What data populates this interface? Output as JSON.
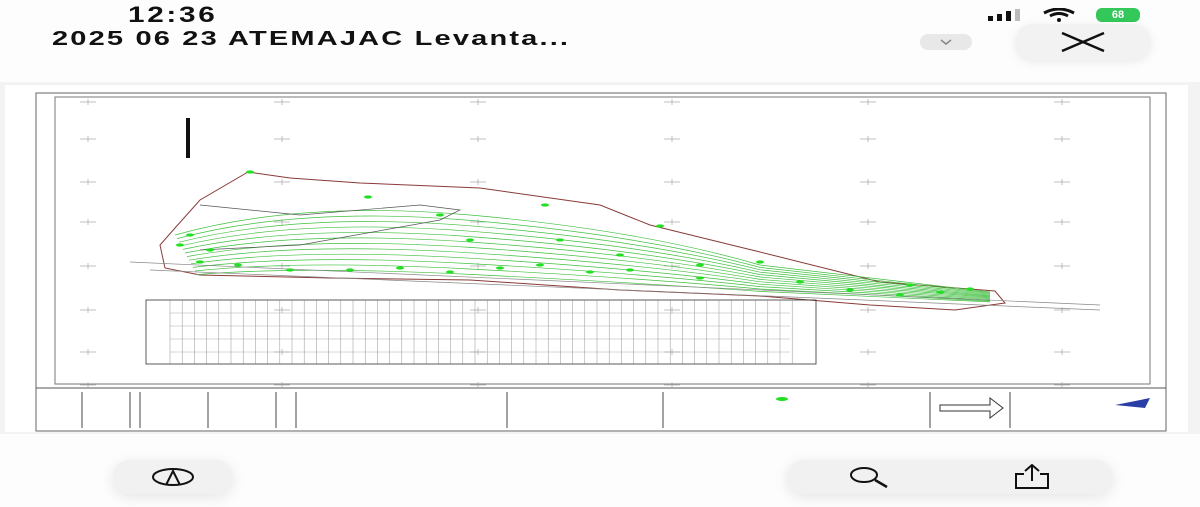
{
  "status_bar": {
    "time": "12:36",
    "battery": "68",
    "signal_icon": "cellular-signal-icon",
    "wifi_icon": "wifi-icon"
  },
  "header": {
    "title": "2025 06 23 ATEMAJAC Levanta...",
    "menu_icon": "chevron-down-icon",
    "close_icon": "close-icon"
  },
  "document": {
    "type": "pdf-preview",
    "content": "topographic survey plan with contour lines, construction table and title block"
  },
  "toolbar": {
    "markup_icon": "markup-pen-icon",
    "search_icon": "search-icon",
    "share_icon": "share-icon"
  },
  "colors": {
    "contour": "#3fbf3f",
    "points": "#22e022",
    "boundary": "#8a3a3a",
    "battery": "#34c759"
  }
}
